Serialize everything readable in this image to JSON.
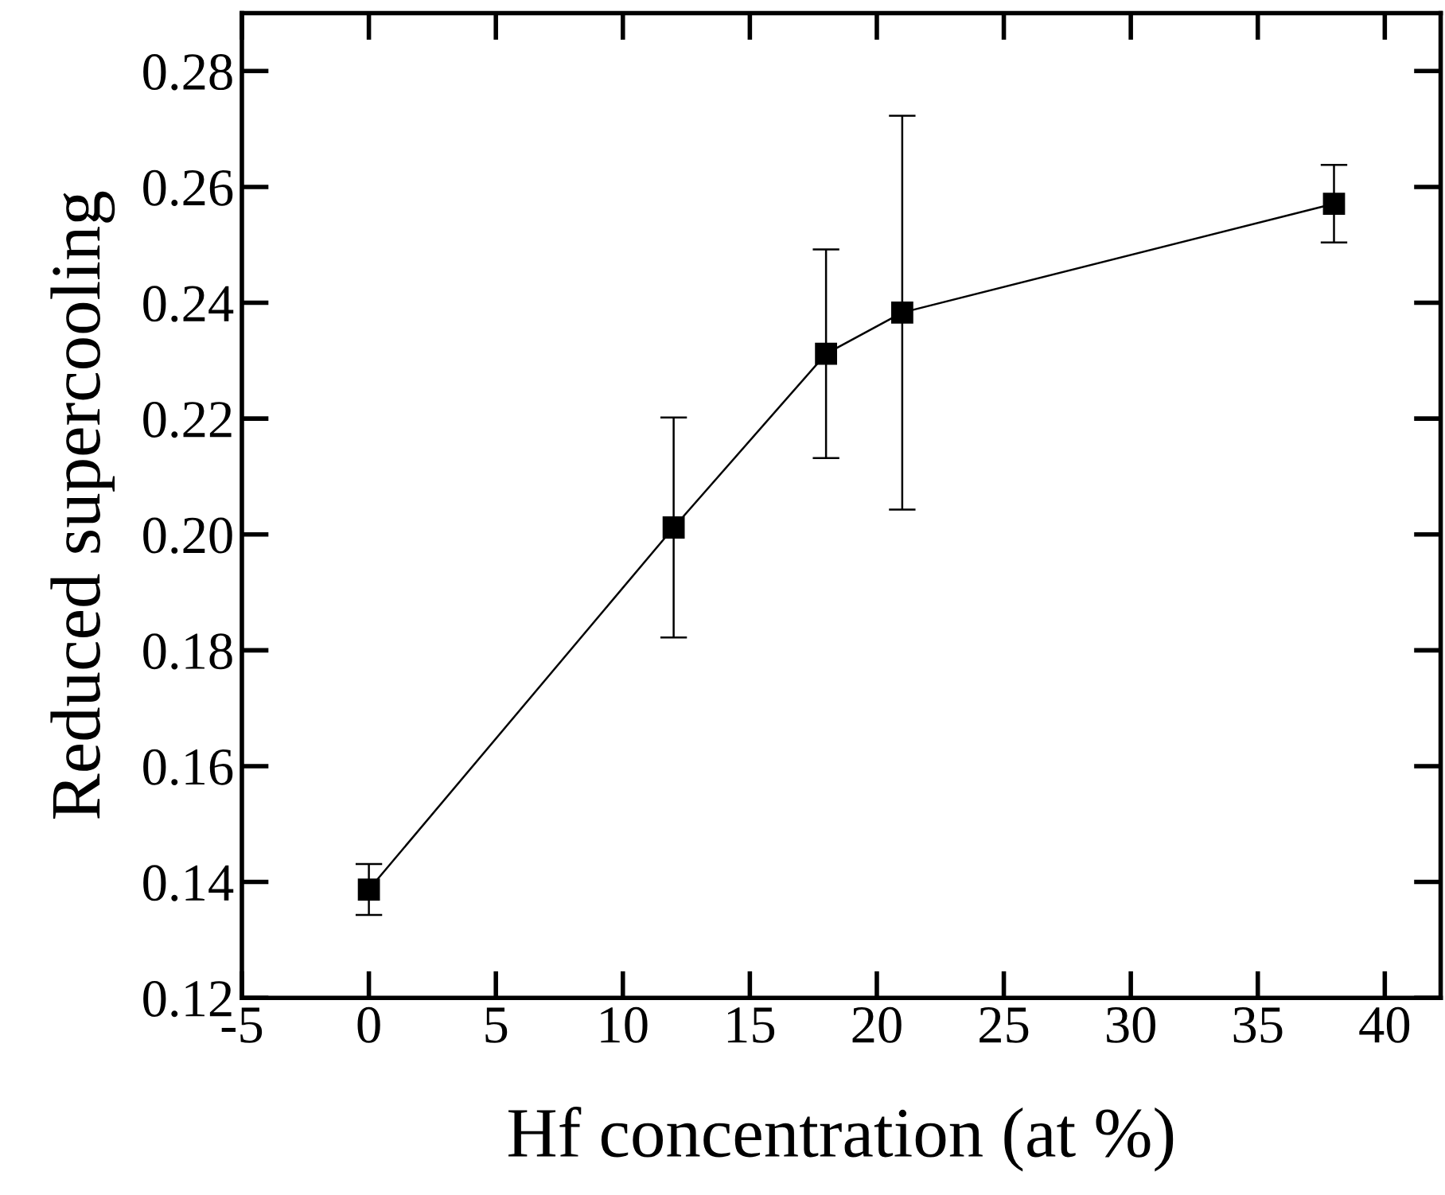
{
  "chart_data": {
    "type": "line",
    "xlabel": "Hf concentration (at %)",
    "ylabel": "Reduced supercooling",
    "x": [
      0,
      12,
      18,
      21,
      38
    ],
    "series": [
      {
        "color": "#000000",
        "values": [
          0.1387,
          0.2012,
          0.2312,
          0.2383,
          0.2571
        ],
        "errors": [
          0.0044,
          0.019,
          0.018,
          0.034,
          0.0067
        ]
      }
    ],
    "marker": "square",
    "line_style": "solid",
    "grid": false,
    "legend": false,
    "xlim": [
      -5,
      42.2
    ],
    "xticks": [
      -5,
      0,
      5,
      10,
      15,
      20,
      25,
      30,
      35,
      40
    ],
    "ylim": [
      0.12,
      0.29
    ],
    "yticks": [
      {
        "value": 0.12,
        "label": "0.12"
      },
      {
        "value": 0.14,
        "label": "0.14"
      },
      {
        "value": 0.16,
        "label": "0.16"
      },
      {
        "value": 0.18,
        "label": "0.18"
      },
      {
        "value": 0.2,
        "label": "0.20"
      },
      {
        "value": 0.22,
        "label": "0.22"
      },
      {
        "value": 0.24,
        "label": "0.24"
      },
      {
        "value": 0.26,
        "label": "0.26"
      },
      {
        "value": 0.28,
        "label": "0.28"
      }
    ]
  }
}
